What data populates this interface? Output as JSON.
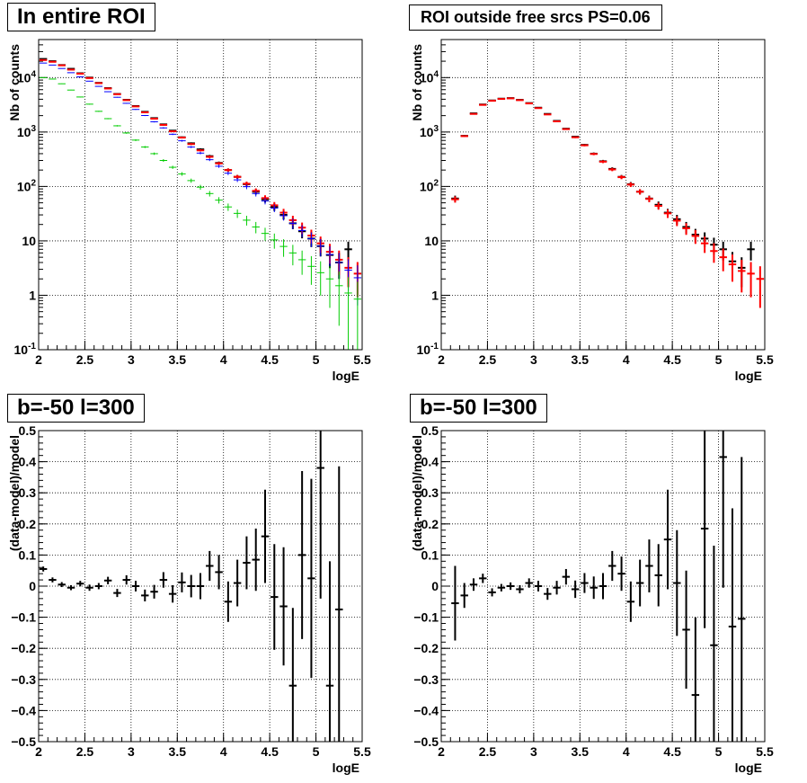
{
  "panels": [
    {
      "id": "p1",
      "title": "In entire ROI",
      "ylabel": "Nb of counts",
      "xlabel": "logE"
    },
    {
      "id": "p2",
      "title": "ROI outside free srcs PS=0.06",
      "ylabel": "Nb of counts",
      "xlabel": "logE"
    },
    {
      "id": "p3",
      "title": "b=-50 l=300",
      "ylabel": "(data-model)/model",
      "xlabel": "logE"
    },
    {
      "id": "p4",
      "title": "b=-50 l=300",
      "ylabel": "(data-model)/model",
      "xlabel": "logE"
    }
  ],
  "colors": {
    "data": "#000000",
    "model_total": "#ff0000",
    "model_blue": "#0000ff",
    "model_green": "#00cc00",
    "grid": "#000000"
  },
  "chart_data": [
    {
      "type": "scatter",
      "panel": "p1",
      "title": "In entire ROI",
      "xlabel": "logE",
      "ylabel": "Nb of counts",
      "xlim": [
        2,
        5.5
      ],
      "ylim": [
        0.1,
        50000
      ],
      "yscale": "log",
      "xticks": [
        "2",
        "2.5",
        "3",
        "3.5",
        "4",
        "4.5",
        "5",
        "5.5"
      ],
      "yticks": [
        "10^-1",
        "1",
        "10",
        "10^2",
        "10^3",
        "10^4"
      ],
      "grid": true,
      "bin_width": 0.1,
      "x": [
        2.05,
        2.15,
        2.25,
        2.35,
        2.45,
        2.55,
        2.65,
        2.75,
        2.85,
        2.95,
        3.05,
        3.15,
        3.25,
        3.35,
        3.45,
        3.55,
        3.65,
        3.75,
        3.85,
        3.95,
        4.05,
        4.15,
        4.25,
        4.35,
        4.45,
        4.55,
        4.65,
        4.75,
        4.85,
        4.95,
        5.05,
        5.15,
        5.25,
        5.35,
        5.45
      ],
      "series": [
        {
          "name": "data",
          "kind": "data",
          "values": [
            22000,
            20000,
            17000,
            14500,
            12000,
            10000,
            8000,
            6400,
            5000,
            3900,
            3000,
            2350,
            1800,
            1380,
            1060,
            800,
            620,
            480,
            360,
            270,
            200,
            150,
            110,
            80,
            58,
            42,
            30,
            21,
            15,
            11,
            8,
            5.5,
            4,
            7,
            0
          ],
          "err_y": true
        },
        {
          "name": "model_total",
          "kind": "model",
          "values": [
            21000,
            19500,
            16800,
            14000,
            11800,
            9800,
            7900,
            6300,
            4950,
            3850,
            2950,
            2300,
            1760,
            1350,
            1030,
            790,
            600,
            460,
            350,
            265,
            200,
            150,
            112,
            83,
            61,
            45,
            33,
            24,
            17.5,
            12.5,
            9,
            6.3,
            4.5,
            3.2,
            2.5
          ],
          "err_y": true
        },
        {
          "name": "model_blue",
          "kind": "model",
          "values": [
            18500,
            17000,
            14700,
            12300,
            10300,
            8600,
            6900,
            5500,
            4350,
            3370,
            2600,
            2010,
            1540,
            1190,
            910,
            690,
            530,
            410,
            310,
            235,
            175,
            132,
            99,
            74,
            54,
            40,
            29,
            21,
            15.5,
            11,
            8,
            5.6,
            4,
            2.9,
            2.1
          ],
          "err_y": true
        },
        {
          "name": "model_green",
          "kind": "model",
          "values": [
            10000,
            9400,
            7700,
            5900,
            4400,
            3250,
            2400,
            1760,
            1300,
            960,
            710,
            530,
            400,
            300,
            225,
            170,
            128,
            97,
            74,
            56,
            42,
            32,
            24,
            18,
            13.7,
            10.4,
            7.9,
            6,
            4.5,
            3.4,
            2.6,
            2,
            1.5,
            1.1,
            0.85
          ],
          "err_y": true
        }
      ]
    },
    {
      "type": "scatter",
      "panel": "p2",
      "title": "ROI outside free srcs PS=0.06",
      "xlabel": "logE",
      "ylabel": "Nb of counts",
      "xlim": [
        2,
        5.5
      ],
      "ylim": [
        0.1,
        50000
      ],
      "yscale": "log",
      "xticks": [
        "2",
        "2.5",
        "3",
        "3.5",
        "4",
        "4.5",
        "5",
        "5.5"
      ],
      "yticks": [
        "10^-1",
        "1",
        "10",
        "10^2",
        "10^3",
        "10^4"
      ],
      "grid": true,
      "bin_width": 0.1,
      "x": [
        2.15,
        2.25,
        2.35,
        2.45,
        2.55,
        2.65,
        2.75,
        2.85,
        2.95,
        3.05,
        3.15,
        3.25,
        3.35,
        3.45,
        3.55,
        3.65,
        3.75,
        3.85,
        3.95,
        4.05,
        4.15,
        4.25,
        4.35,
        4.45,
        4.55,
        4.65,
        4.75,
        4.85,
        4.95,
        5.05,
        5.15,
        5.25,
        5.35,
        5.45
      ],
      "series": [
        {
          "name": "data",
          "kind": "data",
          "values": [
            60,
            850,
            2200,
            3200,
            3800,
            4100,
            4200,
            3900,
            3400,
            2800,
            2150,
            1600,
            1150,
            820,
            580,
            400,
            290,
            210,
            150,
            110,
            80,
            60,
            46,
            33,
            25,
            18,
            13,
            11,
            8.5,
            7,
            4.2,
            3.2,
            7,
            0
          ],
          "err_y": true
        },
        {
          "name": "model_total",
          "kind": "model",
          "values": [
            58,
            840,
            2150,
            3150,
            3750,
            4050,
            4150,
            3850,
            3350,
            2750,
            2100,
            1570,
            1130,
            800,
            570,
            395,
            285,
            205,
            148,
            108,
            80,
            59,
            44,
            32,
            23.5,
            17,
            12.3,
            9,
            6.5,
            5,
            3.7,
            2.8,
            2.5,
            2
          ],
          "err_y": true
        }
      ]
    },
    {
      "type": "scatter",
      "panel": "p3",
      "title": "b=-50 l=300",
      "xlabel": "logE",
      "ylabel": "(data-model)/model",
      "xlim": [
        2,
        5.5
      ],
      "ylim": [
        -0.5,
        0.5
      ],
      "yscale": "linear",
      "xticks": [
        "2",
        "2.5",
        "3",
        "3.5",
        "4",
        "4.5",
        "5",
        "5.5"
      ],
      "yticks": [
        "-0.5",
        "-0.4",
        "-0.3",
        "-0.2",
        "-0.1",
        "0",
        "0.1",
        "0.2",
        "0.3",
        "0.4",
        "0.5"
      ],
      "grid": true,
      "bin_width": 0.1,
      "x": [
        2.05,
        2.15,
        2.25,
        2.35,
        2.45,
        2.55,
        2.65,
        2.75,
        2.85,
        2.95,
        3.05,
        3.15,
        3.25,
        3.35,
        3.45,
        3.55,
        3.65,
        3.75,
        3.85,
        3.95,
        4.05,
        4.15,
        4.25,
        4.35,
        4.45,
        4.55,
        4.65,
        4.75,
        4.85,
        4.95,
        5.05,
        5.15,
        5.25
      ],
      "series": [
        {
          "name": "data",
          "kind": "data",
          "values": [
            0.055,
            0.02,
            0.005,
            -0.005,
            0.008,
            -0.005,
            0.0,
            0.018,
            -0.022,
            0.02,
            0.0,
            -0.03,
            -0.018,
            0.02,
            -0.025,
            0.012,
            0.0,
            0.0,
            0.065,
            0.045,
            -0.05,
            0.01,
            0.075,
            0.085,
            0.16,
            -0.035,
            -0.065,
            -0.32,
            0.1,
            0.025,
            0.38,
            -0.32,
            -0.075
          ],
          "errors": [
            0.008,
            0.008,
            0.008,
            0.008,
            0.009,
            0.01,
            0.01,
            0.012,
            0.013,
            0.015,
            0.017,
            0.019,
            0.022,
            0.025,
            0.028,
            0.032,
            0.036,
            0.042,
            0.048,
            0.055,
            0.065,
            0.075,
            0.085,
            0.1,
            0.15,
            0.17,
            0.19,
            0.25,
            0.27,
            0.32,
            0.42,
            0.4,
            0.46
          ]
        }
      ]
    },
    {
      "type": "scatter",
      "panel": "p4",
      "title": "b=-50 l=300",
      "xlabel": "logE",
      "ylabel": "(data-model)/model",
      "xlim": [
        2,
        5.5
      ],
      "ylim": [
        -0.5,
        0.5
      ],
      "yscale": "linear",
      "xticks": [
        "2",
        "2.5",
        "3",
        "3.5",
        "4",
        "4.5",
        "5",
        "5.5"
      ],
      "yticks": [
        "-0.5",
        "-0.4",
        "-0.3",
        "-0.2",
        "-0.1",
        "0",
        "0.1",
        "0.2",
        "0.3",
        "0.4",
        "0.5"
      ],
      "grid": true,
      "bin_width": 0.1,
      "x": [
        2.15,
        2.25,
        2.35,
        2.45,
        2.55,
        2.65,
        2.75,
        2.85,
        2.95,
        3.05,
        3.15,
        3.25,
        3.35,
        3.45,
        3.55,
        3.65,
        3.75,
        3.85,
        3.95,
        4.05,
        4.15,
        4.25,
        4.35,
        4.45,
        4.55,
        4.65,
        4.75,
        4.85,
        4.95,
        5.05,
        5.15,
        5.25
      ],
      "series": [
        {
          "name": "data",
          "kind": "data",
          "values": [
            -0.055,
            -0.03,
            0.005,
            0.025,
            -0.02,
            -0.005,
            0.0,
            -0.01,
            0.01,
            0.0,
            -0.025,
            -0.005,
            0.03,
            -0.01,
            0.01,
            -0.005,
            0.0,
            0.065,
            0.04,
            -0.05,
            0.01,
            0.065,
            0.035,
            0.15,
            0.01,
            -0.14,
            -0.35,
            0.185,
            -0.19,
            0.415,
            -0.13,
            -0.105
          ],
          "errors": [
            0.12,
            0.04,
            0.02,
            0.015,
            0.013,
            0.012,
            0.012,
            0.013,
            0.015,
            0.017,
            0.019,
            0.022,
            0.025,
            0.028,
            0.032,
            0.036,
            0.042,
            0.048,
            0.055,
            0.065,
            0.075,
            0.085,
            0.1,
            0.16,
            0.17,
            0.19,
            0.25,
            0.32,
            0.32,
            0.42,
            0.38,
            0.52
          ]
        }
      ]
    }
  ]
}
